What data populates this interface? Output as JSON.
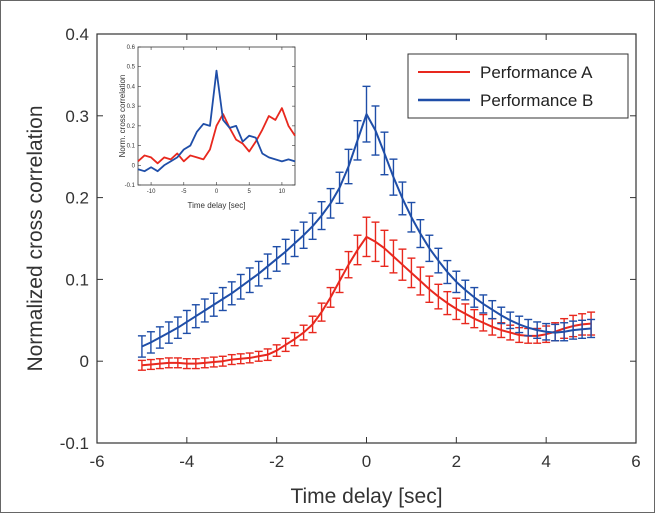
{
  "chart_data": [
    {
      "type": "line",
      "title": "",
      "xlabel": "Time delay [sec]",
      "ylabel": "Normalized cross correlation",
      "xlim": [
        -6,
        6
      ],
      "ylim": [
        -0.1,
        0.4
      ],
      "xticks": [
        "-6",
        "-4",
        "-2",
        "0",
        "2",
        "4",
        "6"
      ],
      "yticks": [
        "-0.1",
        "0",
        "0.1",
        "0.2",
        "0.3",
        "0.4"
      ],
      "legend_position": "top-right",
      "grid": false,
      "error_bars": true,
      "x": [
        -5.0,
        -4.8,
        -4.6,
        -4.4,
        -4.2,
        -4.0,
        -3.8,
        -3.6,
        -3.4,
        -3.2,
        -3.0,
        -2.8,
        -2.6,
        -2.4,
        -2.2,
        -2.0,
        -1.8,
        -1.6,
        -1.4,
        -1.2,
        -1.0,
        -0.8,
        -0.6,
        -0.4,
        -0.2,
        0.0,
        0.2,
        0.4,
        0.6,
        0.8,
        1.0,
        1.2,
        1.4,
        1.6,
        1.8,
        2.0,
        2.2,
        2.4,
        2.6,
        2.8,
        3.0,
        3.2,
        3.4,
        3.6,
        3.8,
        4.0,
        4.2,
        4.4,
        4.6,
        4.8,
        5.0
      ],
      "series": [
        {
          "name": "Performance A",
          "color": "#e8281e",
          "values": [
            -0.005,
            -0.004,
            -0.003,
            -0.002,
            -0.002,
            -0.003,
            -0.003,
            -0.002,
            -0.001,
            0.0,
            0.002,
            0.003,
            0.004,
            0.006,
            0.008,
            0.013,
            0.02,
            0.027,
            0.035,
            0.045,
            0.06,
            0.078,
            0.098,
            0.118,
            0.136,
            0.152,
            0.146,
            0.138,
            0.128,
            0.118,
            0.108,
            0.098,
            0.088,
            0.079,
            0.071,
            0.064,
            0.058,
            0.052,
            0.047,
            0.042,
            0.038,
            0.035,
            0.032,
            0.031,
            0.031,
            0.033,
            0.036,
            0.04,
            0.043,
            0.045,
            0.046
          ],
          "errors": [
            0.006,
            0.006,
            0.006,
            0.006,
            0.006,
            0.006,
            0.006,
            0.006,
            0.006,
            0.006,
            0.006,
            0.006,
            0.006,
            0.006,
            0.007,
            0.007,
            0.008,
            0.008,
            0.009,
            0.01,
            0.011,
            0.012,
            0.014,
            0.016,
            0.018,
            0.024,
            0.024,
            0.022,
            0.02,
            0.019,
            0.018,
            0.017,
            0.016,
            0.015,
            0.014,
            0.013,
            0.012,
            0.011,
            0.01,
            0.01,
            0.009,
            0.009,
            0.009,
            0.009,
            0.009,
            0.01,
            0.011,
            0.012,
            0.013,
            0.013,
            0.014
          ]
        },
        {
          "name": "Performance B",
          "color": "#1f4ea8",
          "values": [
            0.018,
            0.023,
            0.029,
            0.035,
            0.041,
            0.048,
            0.055,
            0.062,
            0.069,
            0.076,
            0.083,
            0.091,
            0.099,
            0.107,
            0.116,
            0.125,
            0.134,
            0.144,
            0.154,
            0.165,
            0.178,
            0.193,
            0.212,
            0.238,
            0.27,
            0.302,
            0.282,
            0.254,
            0.225,
            0.199,
            0.176,
            0.156,
            0.138,
            0.123,
            0.109,
            0.097,
            0.087,
            0.078,
            0.07,
            0.063,
            0.056,
            0.05,
            0.045,
            0.041,
            0.038,
            0.036,
            0.035,
            0.036,
            0.038,
            0.039,
            0.04
          ],
          "errors": [
            0.013,
            0.013,
            0.013,
            0.013,
            0.013,
            0.014,
            0.014,
            0.014,
            0.014,
            0.014,
            0.014,
            0.015,
            0.015,
            0.015,
            0.015,
            0.015,
            0.015,
            0.016,
            0.016,
            0.016,
            0.017,
            0.018,
            0.019,
            0.021,
            0.024,
            0.034,
            0.03,
            0.026,
            0.022,
            0.02,
            0.018,
            0.017,
            0.016,
            0.015,
            0.014,
            0.013,
            0.012,
            0.012,
            0.011,
            0.011,
            0.01,
            0.01,
            0.01,
            0.01,
            0.01,
            0.01,
            0.01,
            0.011,
            0.011,
            0.011,
            0.011
          ]
        }
      ]
    },
    {
      "type": "line",
      "title": "",
      "xlabel": "Time delay [sec]",
      "ylabel": "Norm. cross correlation",
      "xlim": [
        -12,
        12
      ],
      "ylim": [
        -0.1,
        0.6
      ],
      "xticks": [
        "-10",
        "-5",
        "0",
        "5",
        "10"
      ],
      "yticks": [
        "-0.1",
        "0",
        "0.1",
        "0.2",
        "0.3",
        "0.4",
        "0.5",
        "0.6"
      ],
      "x": [
        -12,
        -11,
        -10,
        -9,
        -8,
        -7,
        -6,
        -5,
        -4,
        -3,
        -2,
        -1,
        0,
        1,
        2,
        3,
        4,
        5,
        6,
        7,
        8,
        9,
        10,
        11,
        12
      ],
      "series": [
        {
          "name": "Performance A",
          "color": "#e8281e",
          "values": [
            0.02,
            0.05,
            0.04,
            0.01,
            0.04,
            0.03,
            0.06,
            0.02,
            0.05,
            0.04,
            0.03,
            0.08,
            0.2,
            0.26,
            0.19,
            0.13,
            0.11,
            0.07,
            0.12,
            0.18,
            0.25,
            0.23,
            0.29,
            0.2,
            0.15
          ]
        },
        {
          "name": "Performance B",
          "color": "#1f4ea8",
          "values": [
            -0.02,
            -0.03,
            -0.01,
            -0.03,
            0.0,
            0.02,
            0.04,
            0.08,
            0.1,
            0.17,
            0.21,
            0.2,
            0.48,
            0.23,
            0.19,
            0.2,
            0.12,
            0.15,
            0.14,
            0.06,
            0.04,
            0.03,
            0.02,
            0.03,
            0.02
          ]
        }
      ]
    }
  ]
}
